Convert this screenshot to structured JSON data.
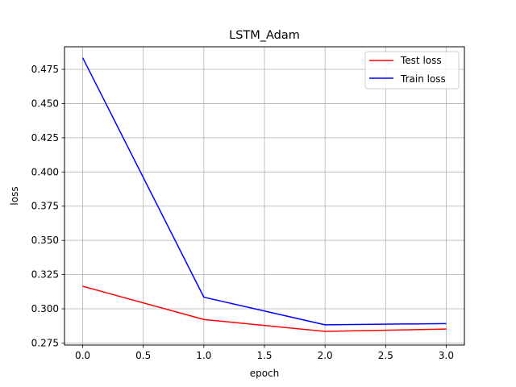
{
  "chart_data": {
    "type": "line",
    "title": "LSTM_Adam",
    "xlabel": "epoch",
    "ylabel": "loss",
    "x": [
      0,
      1,
      2,
      3
    ],
    "series": [
      {
        "name": "Test loss",
        "color": "#ff0000",
        "values": [
          0.3165,
          0.2922,
          0.2835,
          0.2852
        ]
      },
      {
        "name": "Train loss",
        "color": "#0000ff",
        "values": [
          0.4835,
          0.3085,
          0.2883,
          0.2892
        ]
      }
    ],
    "xlim": [
      -0.15,
      3.15
    ],
    "ylim": [
      0.2735,
      0.4915
    ],
    "xticks": [
      0.0,
      0.5,
      1.0,
      1.5,
      2.0,
      2.5,
      3.0
    ],
    "xtick_labels": [
      "0.0",
      "0.5",
      "1.0",
      "1.5",
      "2.0",
      "2.5",
      "3.0"
    ],
    "yticks": [
      0.275,
      0.3,
      0.325,
      0.35,
      0.375,
      0.4,
      0.425,
      0.45,
      0.475
    ],
    "ytick_labels": [
      "0.275",
      "0.300",
      "0.325",
      "0.350",
      "0.375",
      "0.400",
      "0.425",
      "0.450",
      "0.475"
    ],
    "grid": true,
    "legend_position": "top-right"
  }
}
